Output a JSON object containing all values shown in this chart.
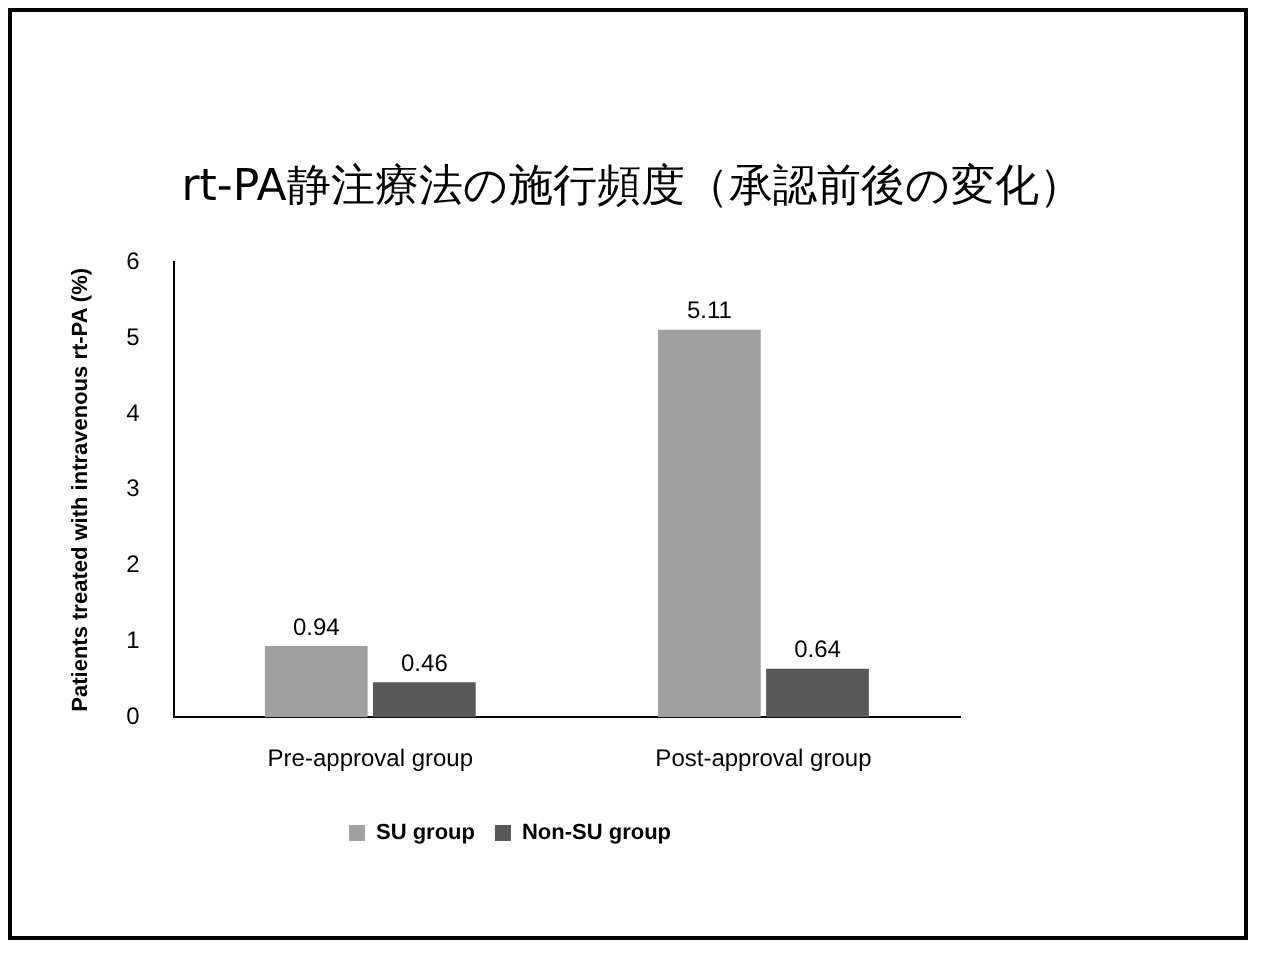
{
  "chart_data": {
    "type": "bar",
    "title": "rt-PA静注療法の施行頻度（承認前後の変化）",
    "ylabel": "Patients treated with intravenous rt-PA (%)",
    "categories": [
      "Pre-approval group",
      "Post-approval group"
    ],
    "series": [
      {
        "name": "SU group",
        "color": "#a0a0a0",
        "values": [
          0.94,
          5.11
        ]
      },
      {
        "name": "Non-SU group",
        "color": "#585858",
        "values": [
          0.46,
          0.64
        ]
      }
    ],
    "ylim": [
      0,
      6
    ],
    "yticks": [
      0,
      1,
      2,
      3,
      4,
      5,
      6
    ],
    "grid": false,
    "legend": "bottom",
    "data_labels": true
  }
}
